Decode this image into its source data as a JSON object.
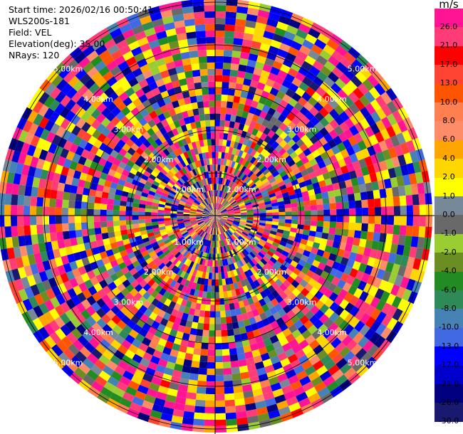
{
  "info": {
    "start_time": "Start time: 2026/02/16 00:50:41",
    "instrument": "WLS200s-181",
    "field": "Field: VEL",
    "elevation": "Elevation(deg): 35.00",
    "nrays": "NRays: 120"
  },
  "range_labels": [
    "1.00km",
    "2.00km",
    "3.00km",
    "4.00km",
    "5.00km"
  ],
  "colorbar": {
    "unit": "m/s",
    "ticks": [
      "26.0",
      "21.0",
      "17.0",
      "13.0",
      "10.0",
      "8.0",
      "6.0",
      "4.0",
      "2.0",
      "1.0",
      "0.0",
      "-1.0",
      "-2.0",
      "-4.0",
      "-6.0",
      "-8.0",
      "-10.0",
      "-13.0",
      "-17.0",
      "-21.0",
      "-26.0",
      "-30.0"
    ],
    "colors": [
      "#ff1493",
      "#ff3c78",
      "#ff0000",
      "#ff4433",
      "#ff5500",
      "#ff7f50",
      "#ff8c69",
      "#ffa500",
      "#ffd700",
      "#ffff00",
      "#778899",
      "#696969",
      "#9acd32",
      "#6b8e23",
      "#228b22",
      "#2e8b57",
      "#4682b4",
      "#4169e1",
      "#0000ff",
      "#0000cd",
      "#000080",
      "#191970"
    ]
  }
}
